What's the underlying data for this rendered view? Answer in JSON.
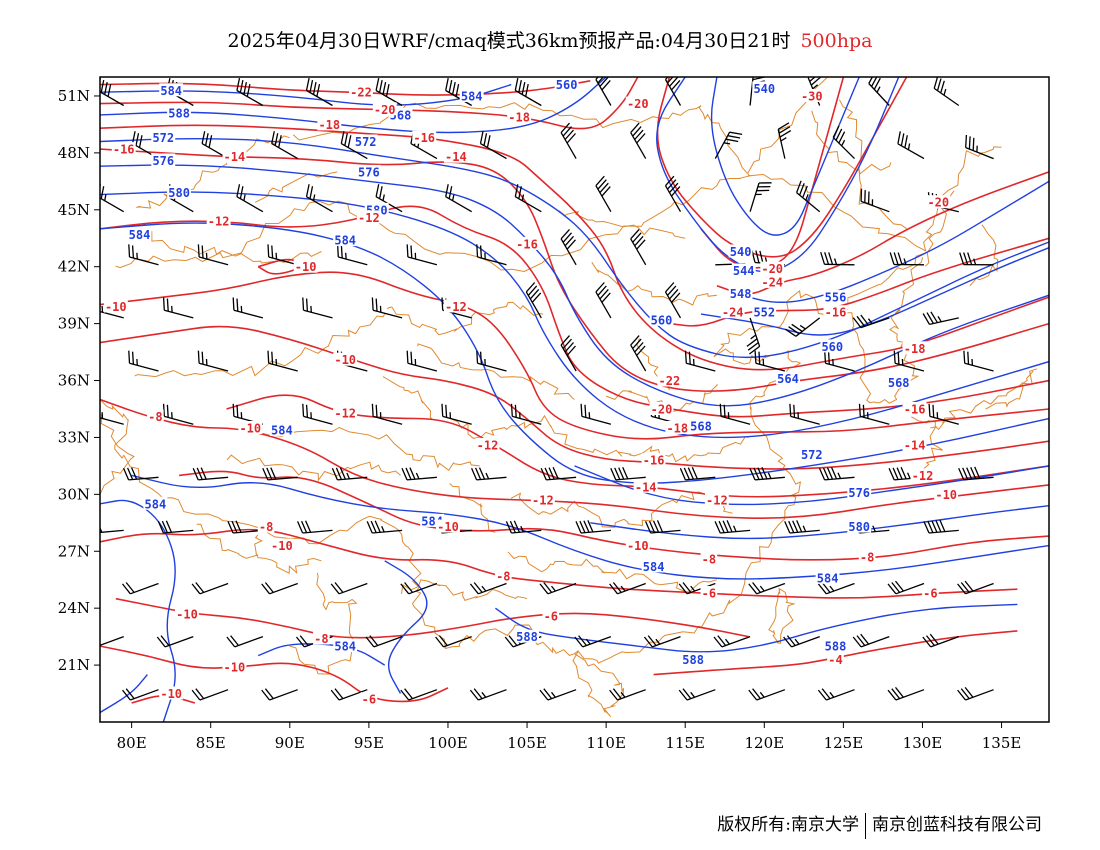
{
  "title": {
    "main": "2025年04月30日WRF/cmaq模式36km预报产品:04月30日21时",
    "level": "500hpa"
  },
  "credit": {
    "left": "版权所有:南京大学",
    "right": "南京创蓝科技有限公司"
  },
  "colors": {
    "height_contour": "#2040e0",
    "temperature_contour": "#e0282b",
    "boundary": "#e08a30",
    "wind_barb": "#000000",
    "frame": "#000000"
  },
  "chart_data": {
    "type": "map",
    "map_extent": {
      "lon": [
        78,
        138
      ],
      "lat": [
        18,
        52
      ]
    },
    "x_ticks": [
      "80E",
      "85E",
      "90E",
      "95E",
      "100E",
      "105E",
      "110E",
      "115E",
      "120E",
      "125E",
      "130E",
      "135E"
    ],
    "x_tick_values": [
      80,
      85,
      90,
      95,
      100,
      105,
      110,
      115,
      120,
      125,
      130,
      135
    ],
    "y_ticks": [
      "51N",
      "48N",
      "45N",
      "42N",
      "39N",
      "36N",
      "33N",
      "30N",
      "27N",
      "24N",
      "21N"
    ],
    "y_tick_values": [
      51,
      48,
      45,
      42,
      39,
      36,
      33,
      30,
      27,
      24,
      21
    ],
    "height_labels": [
      {
        "text": "584",
        "lon": 82.5,
        "lat": 51.3
      },
      {
        "text": "588",
        "lon": 83.0,
        "lat": 50.1
      },
      {
        "text": "572",
        "lon": 82.0,
        "lat": 48.8
      },
      {
        "text": "576",
        "lon": 82.0,
        "lat": 47.6
      },
      {
        "text": "580",
        "lon": 83.0,
        "lat": 45.9
      },
      {
        "text": "584",
        "lon": 80.5,
        "lat": 43.7
      },
      {
        "text": "568",
        "lon": 97.0,
        "lat": 50.0
      },
      {
        "text": "572",
        "lon": 94.8,
        "lat": 48.6
      },
      {
        "text": "576",
        "lon": 95.0,
        "lat": 47.0
      },
      {
        "text": "580",
        "lon": 95.5,
        "lat": 45.0
      },
      {
        "text": "584",
        "lon": 93.5,
        "lat": 43.4
      },
      {
        "text": "584",
        "lon": 101.5,
        "lat": 51.0
      },
      {
        "text": "560",
        "lon": 107.5,
        "lat": 51.6
      },
      {
        "text": "540",
        "lon": 120.0,
        "lat": 51.4
      },
      {
        "text": "540",
        "lon": 118.5,
        "lat": 42.8
      },
      {
        "text": "544",
        "lon": 118.7,
        "lat": 41.8
      },
      {
        "text": "548",
        "lon": 118.5,
        "lat": 40.6
      },
      {
        "text": "552",
        "lon": 120.0,
        "lat": 39.6
      },
      {
        "text": "556",
        "lon": 124.5,
        "lat": 40.4
      },
      {
        "text": "560",
        "lon": 113.5,
        "lat": 39.2
      },
      {
        "text": "560",
        "lon": 124.3,
        "lat": 37.8
      },
      {
        "text": "564",
        "lon": 121.5,
        "lat": 36.1
      },
      {
        "text": "568",
        "lon": 116.0,
        "lat": 33.6
      },
      {
        "text": "568",
        "lon": 128.5,
        "lat": 35.9
      },
      {
        "text": "572",
        "lon": 123.0,
        "lat": 32.1
      },
      {
        "text": "576",
        "lon": 126.0,
        "lat": 30.1
      },
      {
        "text": "580",
        "lon": 126.0,
        "lat": 28.3
      },
      {
        "text": "584",
        "lon": 89.5,
        "lat": 33.4
      },
      {
        "text": "584",
        "lon": 81.5,
        "lat": 29.5
      },
      {
        "text": "584",
        "lon": 99.0,
        "lat": 28.6
      },
      {
        "text": "584",
        "lon": 113.0,
        "lat": 26.2
      },
      {
        "text": "584",
        "lon": 124.0,
        "lat": 25.6
      },
      {
        "text": "584",
        "lon": 93.5,
        "lat": 22.0
      },
      {
        "text": "588",
        "lon": 105.0,
        "lat": 22.5
      },
      {
        "text": "588",
        "lon": 115.5,
        "lat": 21.3
      },
      {
        "text": "588",
        "lon": 124.5,
        "lat": 22.0
      }
    ],
    "temperature_labels": [
      {
        "text": "-22",
        "lon": 94.5,
        "lat": 51.2
      },
      {
        "text": "-20",
        "lon": 96.0,
        "lat": 50.3
      },
      {
        "text": "-18",
        "lon": 92.5,
        "lat": 49.5
      },
      {
        "text": "-16",
        "lon": 79.5,
        "lat": 48.2
      },
      {
        "text": "-14",
        "lon": 86.5,
        "lat": 47.8
      },
      {
        "text": "-16",
        "lon": 98.5,
        "lat": 48.8
      },
      {
        "text": "-14",
        "lon": 100.5,
        "lat": 47.8
      },
      {
        "text": "-18",
        "lon": 104.5,
        "lat": 49.9
      },
      {
        "text": "-20",
        "lon": 112.0,
        "lat": 50.6
      },
      {
        "text": "-30",
        "lon": 123.0,
        "lat": 51.0
      },
      {
        "text": "-12",
        "lon": 85.5,
        "lat": 44.4
      },
      {
        "text": "-12",
        "lon": 95.0,
        "lat": 44.6
      },
      {
        "text": "-16",
        "lon": 105.0,
        "lat": 43.2
      },
      {
        "text": "-10",
        "lon": 91.0,
        "lat": 42.0
      },
      {
        "text": "-10",
        "lon": 79.0,
        "lat": 39.9
      },
      {
        "text": "-12",
        "lon": 100.5,
        "lat": 39.9
      },
      {
        "text": "-10",
        "lon": 93.5,
        "lat": 37.1
      },
      {
        "text": "-12",
        "lon": 93.5,
        "lat": 34.3
      },
      {
        "text": "-8",
        "lon": 81.5,
        "lat": 34.1
      },
      {
        "text": "-10",
        "lon": 87.5,
        "lat": 33.5
      },
      {
        "text": "-12",
        "lon": 102.5,
        "lat": 32.6
      },
      {
        "text": "-20",
        "lon": 120.5,
        "lat": 41.9
      },
      {
        "text": "-24",
        "lon": 120.5,
        "lat": 41.2
      },
      {
        "text": "-24",
        "lon": 118.0,
        "lat": 39.6
      },
      {
        "text": "-16",
        "lon": 124.5,
        "lat": 39.6
      },
      {
        "text": "-18",
        "lon": 129.5,
        "lat": 37.7
      },
      {
        "text": "-20",
        "lon": 131.0,
        "lat": 45.4
      },
      {
        "text": "-22",
        "lon": 114.0,
        "lat": 36.0
      },
      {
        "text": "-20",
        "lon": 113.5,
        "lat": 34.5
      },
      {
        "text": "-18",
        "lon": 114.5,
        "lat": 33.5
      },
      {
        "text": "-16",
        "lon": 129.5,
        "lat": 34.5
      },
      {
        "text": "-16",
        "lon": 113.0,
        "lat": 31.8
      },
      {
        "text": "-14",
        "lon": 129.5,
        "lat": 32.6
      },
      {
        "text": "-14",
        "lon": 112.5,
        "lat": 30.4
      },
      {
        "text": "-12",
        "lon": 130.0,
        "lat": 31.0
      },
      {
        "text": "-12",
        "lon": 117.0,
        "lat": 29.7
      },
      {
        "text": "-10",
        "lon": 131.5,
        "lat": 30.0
      },
      {
        "text": "-12",
        "lon": 106.0,
        "lat": 29.7
      },
      {
        "text": "-10",
        "lon": 100.0,
        "lat": 28.3
      },
      {
        "text": "-10",
        "lon": 112.0,
        "lat": 27.3
      },
      {
        "text": "-8",
        "lon": 88.5,
        "lat": 28.3
      },
      {
        "text": "-10",
        "lon": 89.5,
        "lat": 27.3
      },
      {
        "text": "-8",
        "lon": 116.5,
        "lat": 26.6
      },
      {
        "text": "-8",
        "lon": 126.5,
        "lat": 26.7
      },
      {
        "text": "-8",
        "lon": 103.5,
        "lat": 25.7
      },
      {
        "text": "-6",
        "lon": 116.5,
        "lat": 24.8
      },
      {
        "text": "-6",
        "lon": 130.5,
        "lat": 24.8
      },
      {
        "text": "-6",
        "lon": 106.5,
        "lat": 23.6
      },
      {
        "text": "-10",
        "lon": 83.5,
        "lat": 23.7
      },
      {
        "text": "-8",
        "lon": 92.0,
        "lat": 22.4
      },
      {
        "text": "-10",
        "lon": 86.5,
        "lat": 20.9
      },
      {
        "text": "-10",
        "lon": 82.5,
        "lat": 19.5
      },
      {
        "text": "-6",
        "lon": 95.0,
        "lat": 19.2
      },
      {
        "text": "-4",
        "lon": 124.5,
        "lat": 21.3
      }
    ]
  }
}
